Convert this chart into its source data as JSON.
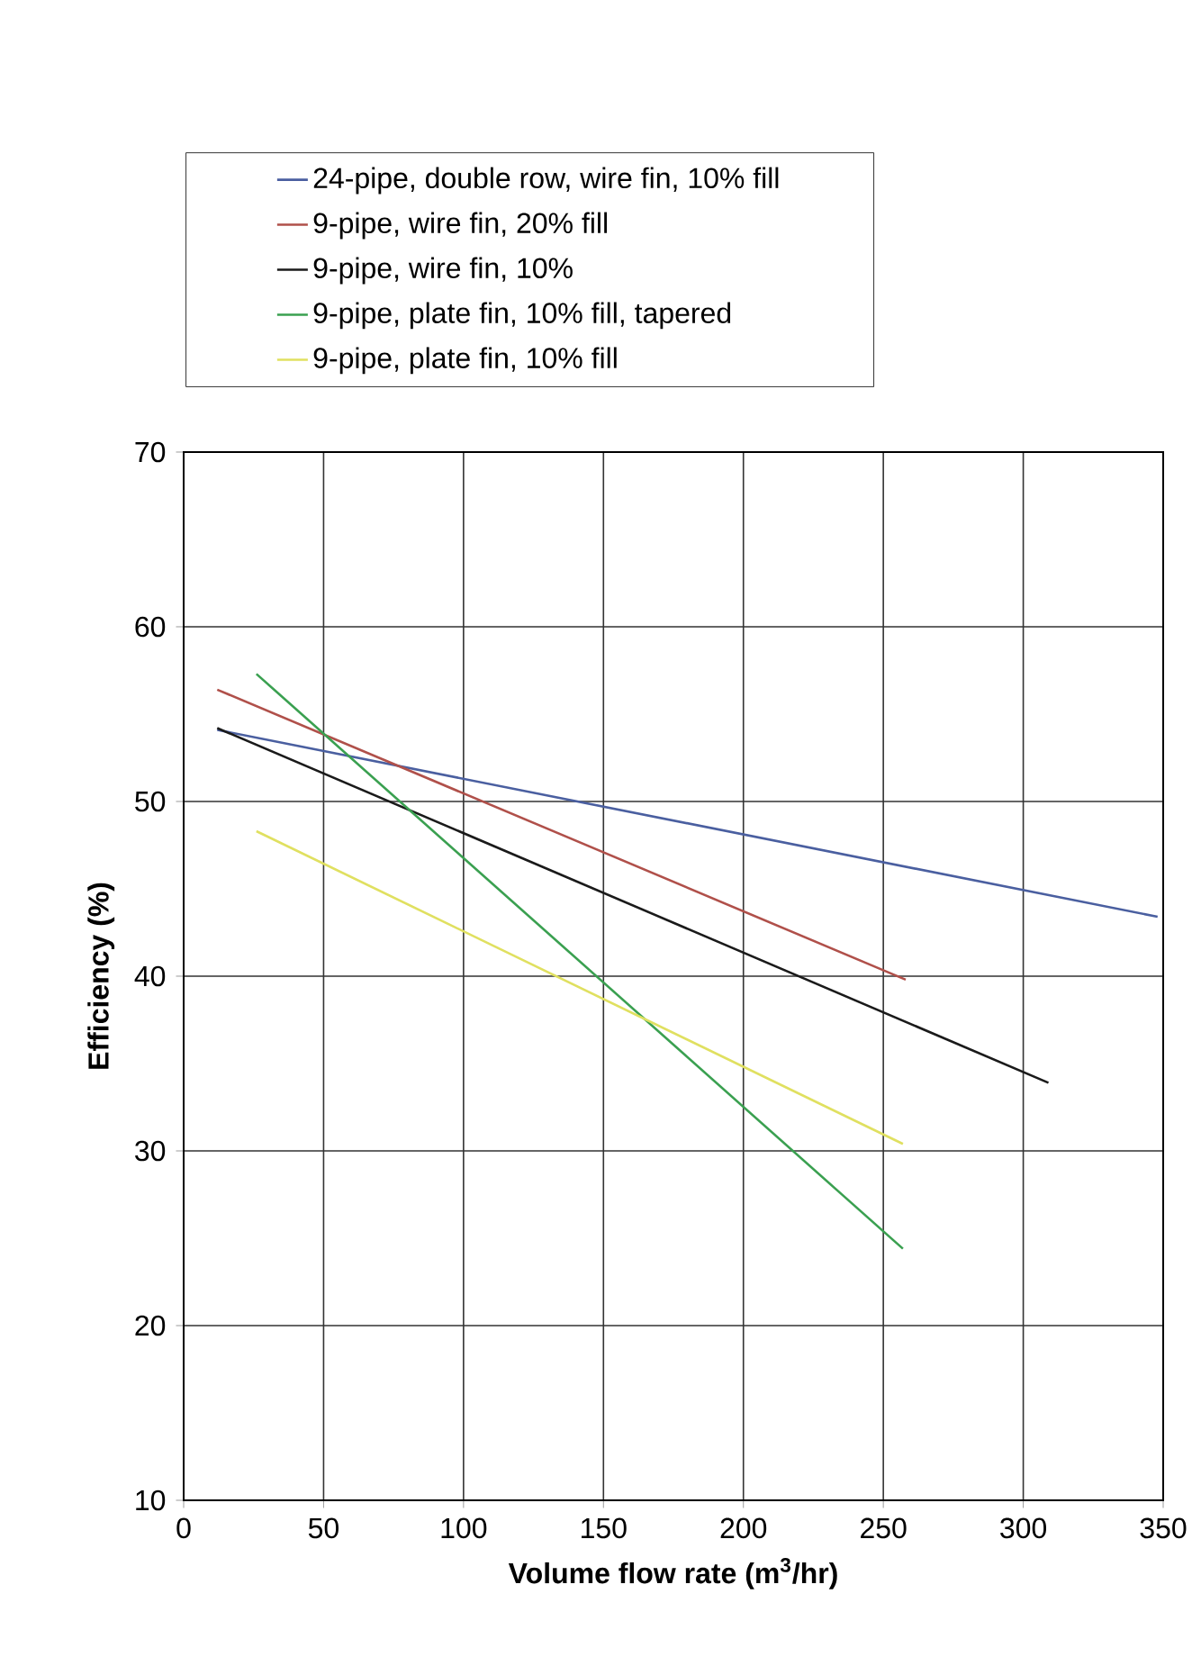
{
  "chart_data": {
    "type": "line",
    "xlabel": "Volume flow rate (m$^{3}$/hr)",
    "ylabel": "Efficiency (%)",
    "xlim": [
      0,
      350
    ],
    "ylim": [
      10,
      70
    ],
    "xticks": [
      0,
      50,
      100,
      150,
      200,
      250,
      300,
      350
    ],
    "yticks": [
      10,
      20,
      30,
      40,
      50,
      60,
      70
    ],
    "grid": true,
    "legend": "top",
    "marker": "none",
    "line_style": "solid",
    "series": [
      {
        "name": "24-pipe, double row, wire fin, 10% fill",
        "color": "#4a5fa0",
        "x": [
          12,
          348
        ],
        "values": [
          54.1,
          43.4
        ]
      },
      {
        "name": "9-pipe, wire fin, 20% fill",
        "color": "#b0504a",
        "x": [
          12,
          258
        ],
        "values": [
          56.4,
          39.8
        ]
      },
      {
        "name": "9-pipe, wire fin, 10%",
        "color": "#1a1a1a",
        "x": [
          12,
          309
        ],
        "values": [
          54.2,
          33.9
        ]
      },
      {
        "name": "9-pipe, plate fin, 10% fill, tapered",
        "color": "#3aa050",
        "x": [
          26,
          257
        ],
        "values": [
          57.3,
          24.4
        ]
      },
      {
        "name": "9-pipe, plate fin, 10% fill",
        "color": "#e0e060",
        "x": [
          26,
          257
        ],
        "values": [
          48.3,
          30.4
        ]
      }
    ]
  }
}
